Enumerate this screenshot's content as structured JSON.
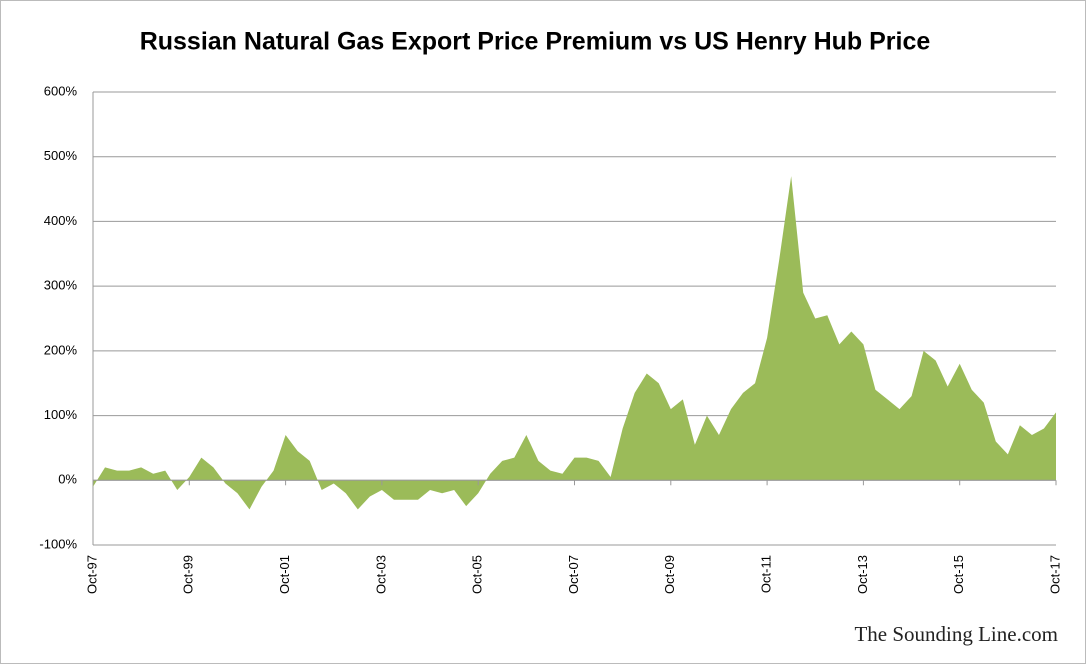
{
  "chart_data": {
    "type": "area",
    "title": "Russian Natural Gas Export Price Premium vs US Henry Hub Price",
    "source": "The Sounding Line.com",
    "color": "#9bbb59",
    "grid": true,
    "ylim": [
      -100,
      600
    ],
    "yticks": [
      {
        "value": -100,
        "label": "-100%"
      },
      {
        "value": 0,
        "label": "0%"
      },
      {
        "value": 100,
        "label": "100%"
      },
      {
        "value": 200,
        "label": "200%"
      },
      {
        "value": 300,
        "label": "300%"
      },
      {
        "value": 400,
        "label": "400%"
      },
      {
        "value": 500,
        "label": "500%"
      },
      {
        "value": 600,
        "label": "600%"
      }
    ],
    "categories": [
      "Oct-97",
      null,
      null,
      null,
      null,
      null,
      null,
      null,
      "Oct-99",
      null,
      null,
      null,
      null,
      null,
      null,
      null,
      "Oct-01",
      null,
      null,
      null,
      null,
      null,
      null,
      null,
      "Oct-03",
      null,
      null,
      null,
      null,
      null,
      null,
      null,
      "Oct-05",
      null,
      null,
      null,
      null,
      null,
      null,
      null,
      "Oct-07",
      null,
      null,
      null,
      null,
      null,
      null,
      null,
      "Oct-09",
      null,
      null,
      null,
      null,
      null,
      null,
      null,
      "Oct-11",
      null,
      null,
      null,
      null,
      null,
      null,
      null,
      "Oct-13",
      null,
      null,
      null,
      null,
      null,
      null,
      null,
      "Oct-15",
      null,
      null,
      null,
      null,
      null,
      null,
      null,
      "Oct-17"
    ],
    "values": [
      -10,
      20,
      15,
      15,
      20,
      10,
      15,
      -15,
      5,
      35,
      20,
      -5,
      -20,
      -45,
      -10,
      15,
      70,
      45,
      30,
      -15,
      -5,
      -20,
      -45,
      -25,
      -15,
      -30,
      -30,
      -30,
      -15,
      -20,
      -15,
      -40,
      -20,
      10,
      30,
      35,
      70,
      30,
      15,
      10,
      35,
      35,
      30,
      5,
      80,
      135,
      165,
      150,
      110,
      125,
      55,
      100,
      70,
      110,
      135,
      150,
      220,
      340,
      470,
      290,
      250,
      255,
      210,
      230,
      210,
      140,
      125,
      110,
      130,
      200,
      185,
      145,
      180,
      140,
      120,
      60,
      40,
      85,
      70,
      80,
      105
    ]
  }
}
